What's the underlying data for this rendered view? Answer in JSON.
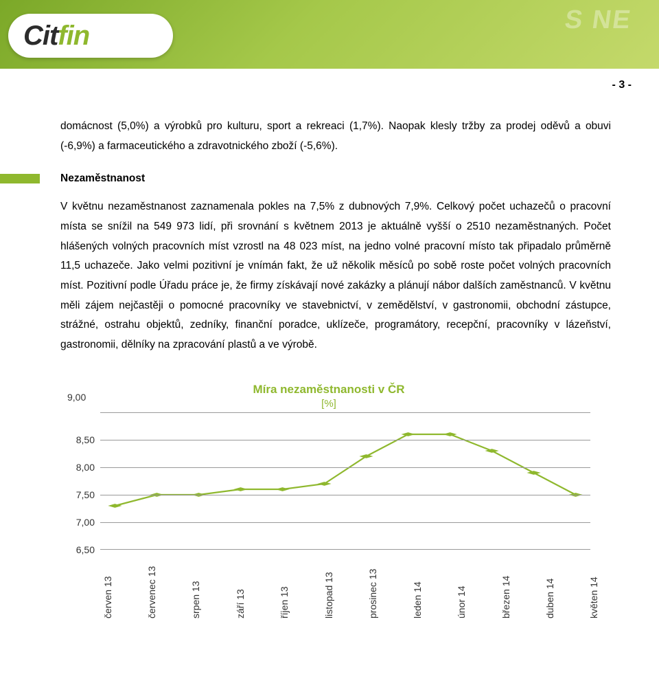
{
  "header": {
    "logo_main": "Cit",
    "logo_accent": "fin",
    "page_number": "- 3 -"
  },
  "paragraph1": "domácnost (5,0%) a výrobků pro kulturu, sport a rekreaci (1,7%). Naopak klesly tržby za prodej oděvů a obuvi (-6,9%) a farmaceutického a zdravotnického zboží (-5,6%).",
  "section_heading": "Nezaměstnanost",
  "paragraph2": "V květnu nezaměstnanost zaznamenala pokles na 7,5% z dubnových 7,9%. Celkový počet uchazečů o pracovní místa se snížil na 549 973 lidí, při srovnání s květnem 2013 je aktuálně vyšší o 2510 nezaměstnaných. Počet hlášených volných pracovních míst vzrostl na 48 023 míst, na jedno volné pracovní místo tak připadalo průměrně 11,5 uchazeče. Jako velmi pozitivní je vnímán fakt, že už několik měsíců po sobě roste  počet volných pracovních míst. Pozitivní podle Úřadu práce je, že firmy získávají nové zakázky a plánují nábor dalších zaměstnanců. V květnu měli zájem nejčastěji o pomocné pracovníky ve stavebnictví, v zemědělství, v gastronomii, obchodní zástupce, strážné, ostrahu objektů, zedníky, finanční poradce, uklízeče, programátory, recepční,  pracovníky v lázeňství, gastronomii, dělníky na zpracování plastů a ve výrobě.",
  "chart": {
    "title": "Míra nezaměstnanosti v ČR",
    "subtitle": "[%]",
    "y_ticks": [
      "9,00",
      "8,50",
      "8,00",
      "7,50",
      "7,00",
      "6,50"
    ],
    "ylim_min": 6.5,
    "ylim_max": 9.0,
    "x_labels": [
      "červen 13",
      "červenec 13",
      "srpen 13",
      "září 13",
      "říjen 13",
      "listopad 13",
      "prosinec 13",
      "leden 14",
      "únor 14",
      "březen 14",
      "duben 14",
      "květen 14"
    ],
    "values": [
      7.3,
      7.5,
      7.5,
      7.6,
      7.6,
      7.7,
      8.2,
      8.6,
      8.6,
      8.3,
      7.9,
      7.5
    ],
    "line_color": "#8fb82e",
    "marker_color": "#8fb82e",
    "grid_color": "#999999",
    "line_width": 2.2,
    "marker_size": 5
  }
}
